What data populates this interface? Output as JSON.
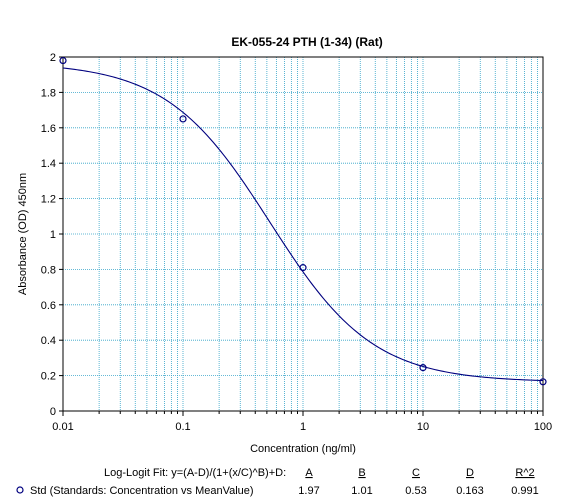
{
  "chart_data": {
    "type": "scatter",
    "title": "EK-055-24 PTH (1-34) (Rat)",
    "xlabel": "Concentration (ng/ml)",
    "ylabel": "Absorbance (OD) 450nm",
    "xscale": "log",
    "xlim": [
      0.01,
      100
    ],
    "ylim": [
      0,
      2
    ],
    "grid": true,
    "x_ticks": [
      "0.01",
      "0.1",
      "1",
      "10",
      "100"
    ],
    "y_ticks": [
      "0",
      "0.2",
      "0.4",
      "0.6",
      "0.8",
      "1",
      "1.2",
      "1.4",
      "1.6",
      "1.8",
      "2"
    ],
    "series": [
      {
        "name": "Std (Standards: Concentration vs MeanValue)",
        "marker": "open-circle",
        "color": "#00007f",
        "x": [
          0.01,
          0.1,
          1,
          10,
          100
        ],
        "y": [
          1.98,
          1.65,
          0.81,
          0.245,
          0.165
        ]
      }
    ],
    "fit": {
      "label": "Log-Logit Fit: y=(A-D)/(1+(x/C)^B)+D:",
      "headers": [
        "A",
        "B",
        "C",
        "D",
        "R^2"
      ],
      "values": [
        "1.97",
        "1.01",
        "0.53",
        "0.163",
        "0.991"
      ],
      "A": 1.97,
      "B": 1.01,
      "C": 0.53,
      "D": 0.163,
      "color": "#00007f"
    },
    "colors": {
      "grid": "#33a3c8",
      "axis": "#000000",
      "curve": "#00007f"
    }
  }
}
